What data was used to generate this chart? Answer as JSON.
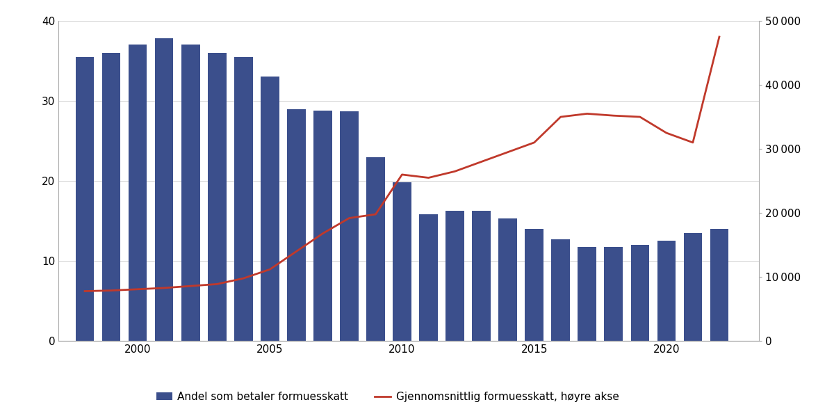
{
  "years": [
    1998,
    1999,
    2000,
    2001,
    2002,
    2003,
    2004,
    2005,
    2006,
    2007,
    2008,
    2009,
    2010,
    2011,
    2012,
    2013,
    2014,
    2015,
    2016,
    2017,
    2018,
    2019,
    2020,
    2021,
    2022
  ],
  "bar_values": [
    35.5,
    36.0,
    37.0,
    37.8,
    37.0,
    36.0,
    35.5,
    33.0,
    29.0,
    28.8,
    28.7,
    23.0,
    19.8,
    15.8,
    16.3,
    16.3,
    15.3,
    14.0,
    12.7,
    11.8,
    11.8,
    12.0,
    12.5,
    13.5,
    14.0
  ],
  "line_values": [
    7800,
    7900,
    8100,
    8300,
    8600,
    8900,
    9800,
    11200,
    14000,
    16800,
    19200,
    19800,
    26000,
    25500,
    26500,
    28000,
    29500,
    31000,
    35000,
    35500,
    35200,
    35000,
    32500,
    31000,
    47500
  ],
  "bar_color": "#3b4f8c",
  "line_color": "#c0392b",
  "bar_label": "Andel som betaler formuesskatt",
  "line_label": "Gjennomsnittlig formuesskatt, høyre akse",
  "left_ylim": [
    0,
    40
  ],
  "right_ylim": [
    0,
    50000
  ],
  "left_yticks": [
    0,
    10,
    20,
    30,
    40
  ],
  "right_yticks": [
    0,
    10000,
    20000,
    30000,
    40000,
    50000
  ],
  "right_yticklabels": [
    "0",
    "10 000",
    "20 000",
    "30 000",
    "40 000",
    "50 000"
  ],
  "xticks": [
    2000,
    2005,
    2010,
    2015,
    2020
  ],
  "background_color": "#ffffff",
  "spine_color": "#aaaaaa",
  "grid_color": "#cccccc"
}
